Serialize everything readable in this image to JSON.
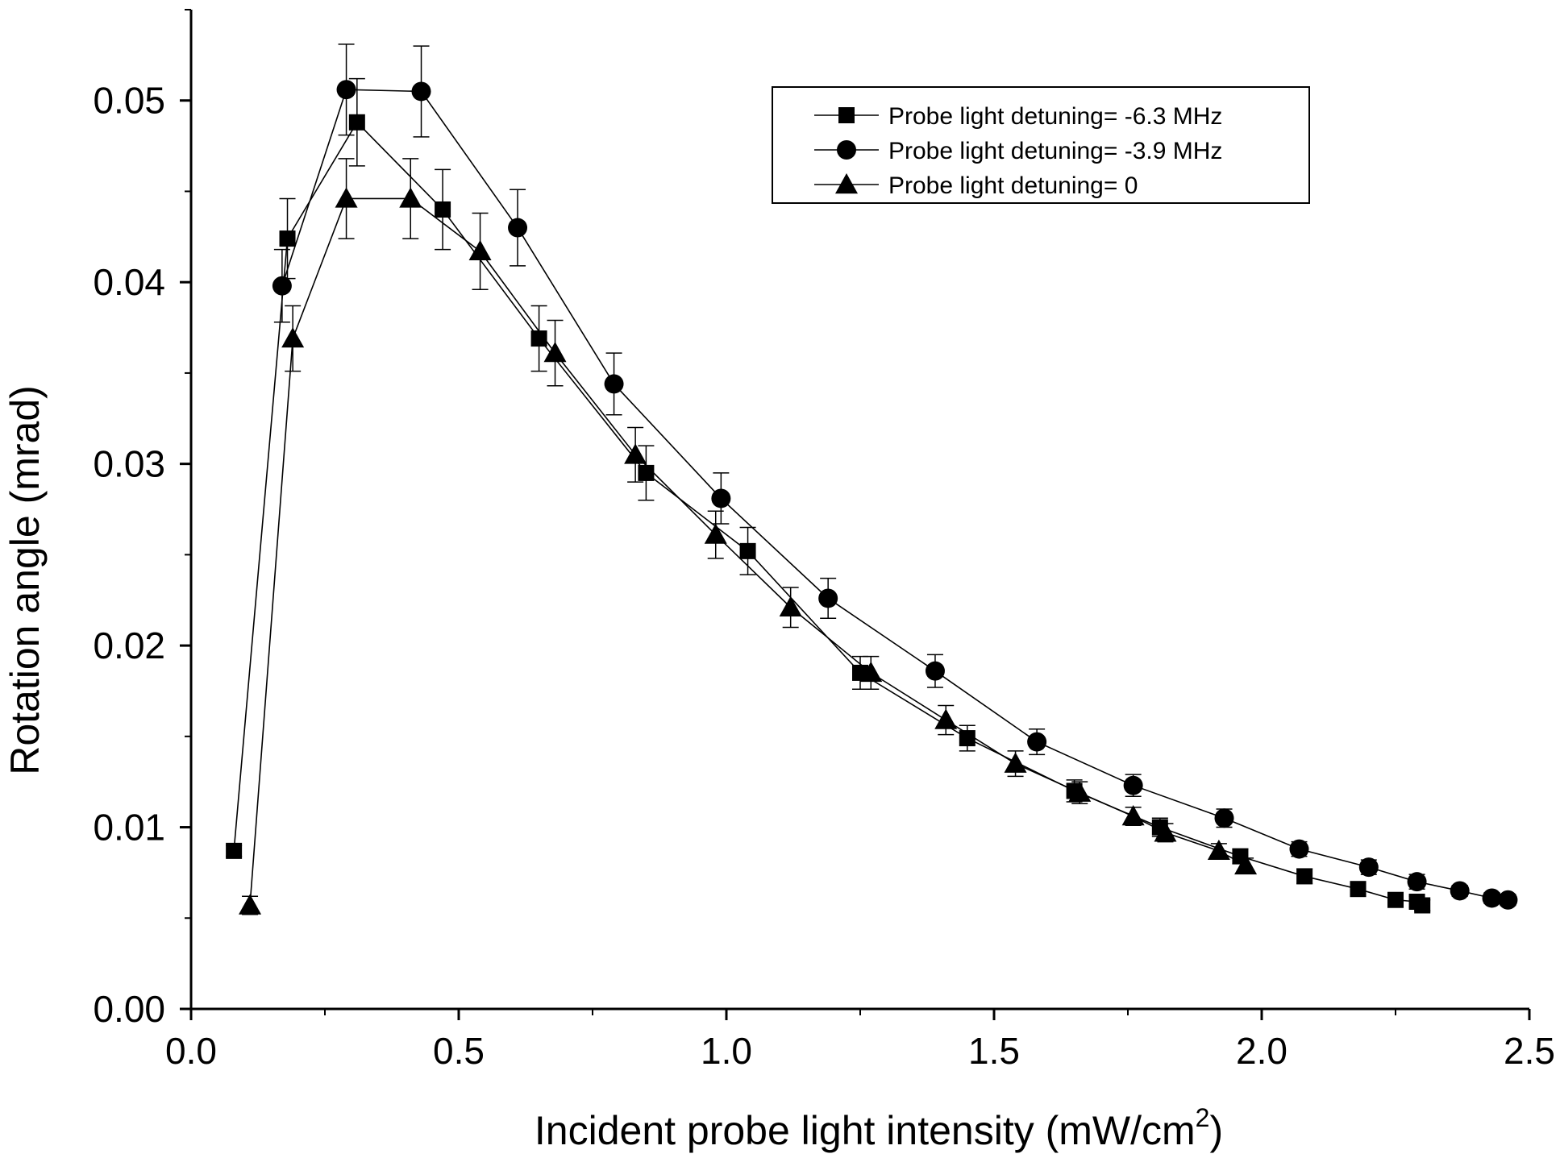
{
  "chart_data": {
    "type": "line",
    "title": "",
    "xlabel": "Incident probe light intensity (mW/cm",
    "xlabel_superscript": "2",
    "xlabel_suffix": ")",
    "ylabel": "Rotation angle (mrad)",
    "xlim": [
      0.0,
      2.5
    ],
    "ylim": [
      0.0,
      0.055
    ],
    "x_ticks": [
      "0.0",
      "0.5",
      "1.0",
      "1.5",
      "2.0",
      "2.5"
    ],
    "y_ticks": [
      "0.00",
      "0.01",
      "0.02",
      "0.03",
      "0.04",
      "0.05"
    ],
    "grid": false,
    "legend_position": "top-right",
    "series": [
      {
        "name": "Probe light detuning= -6.3 MHz",
        "marker": "square",
        "color": "#000000",
        "x": [
          0.08,
          0.18,
          0.31,
          0.47,
          0.65,
          0.85,
          1.04,
          1.25,
          1.45,
          1.65,
          1.81,
          1.96,
          2.08,
          2.18,
          2.25,
          2.29,
          2.3
        ],
        "y": [
          0.0087,
          0.0424,
          0.0488,
          0.044,
          0.0369,
          0.0295,
          0.0252,
          0.0185,
          0.0149,
          0.012,
          0.01,
          0.0084,
          0.0073,
          0.0066,
          0.006,
          0.0059,
          0.0057
        ],
        "err": [
          0.0003,
          0.0022,
          0.0024,
          0.0022,
          0.0018,
          0.0015,
          0.0013,
          0.0009,
          0.0007,
          0.0006,
          0.0005,
          0.0004,
          0.0004,
          0.0003,
          0.0003,
          0.0003,
          0.0003
        ]
      },
      {
        "name": "Probe light detuning= -3.9 MHz",
        "marker": "circle",
        "color": "#000000",
        "x": [
          0.17,
          0.29,
          0.43,
          0.61,
          0.79,
          0.99,
          1.19,
          1.39,
          1.58,
          1.76,
          1.93,
          2.07,
          2.2,
          2.29,
          2.37,
          2.43,
          2.46
        ],
        "y": [
          0.0398,
          0.0506,
          0.0505,
          0.043,
          0.0344,
          0.0281,
          0.0226,
          0.0186,
          0.0147,
          0.0123,
          0.0105,
          0.0088,
          0.0078,
          0.007,
          0.0065,
          0.0061,
          0.006
        ],
        "err": [
          0.002,
          0.0025,
          0.0025,
          0.0021,
          0.0017,
          0.0014,
          0.0011,
          0.0009,
          0.0007,
          0.0006,
          0.0005,
          0.0004,
          0.0004,
          0.0004,
          0.0003,
          0.0003,
          0.0003
        ]
      },
      {
        "name": "Probe light detuning= 0",
        "marker": "triangle",
        "color": "#000000",
        "x": [
          0.11,
          0.19,
          0.29,
          0.41,
          0.54,
          0.68,
          0.83,
          0.98,
          1.12,
          1.27,
          1.41,
          1.54,
          1.66,
          1.76,
          1.82,
          1.92,
          1.97
        ],
        "y": [
          0.0057,
          0.0369,
          0.0446,
          0.0446,
          0.0417,
          0.0361,
          0.0305,
          0.0261,
          0.0221,
          0.0185,
          0.0159,
          0.0135,
          0.0119,
          0.0106,
          0.0097,
          0.0087,
          0.0079
        ],
        "err": [
          0.0005,
          0.0018,
          0.0022,
          0.0022,
          0.0021,
          0.0018,
          0.0015,
          0.0013,
          0.0011,
          0.0009,
          0.0008,
          0.0007,
          0.0006,
          0.0005,
          0.0005,
          0.0004,
          0.0004
        ]
      }
    ]
  }
}
